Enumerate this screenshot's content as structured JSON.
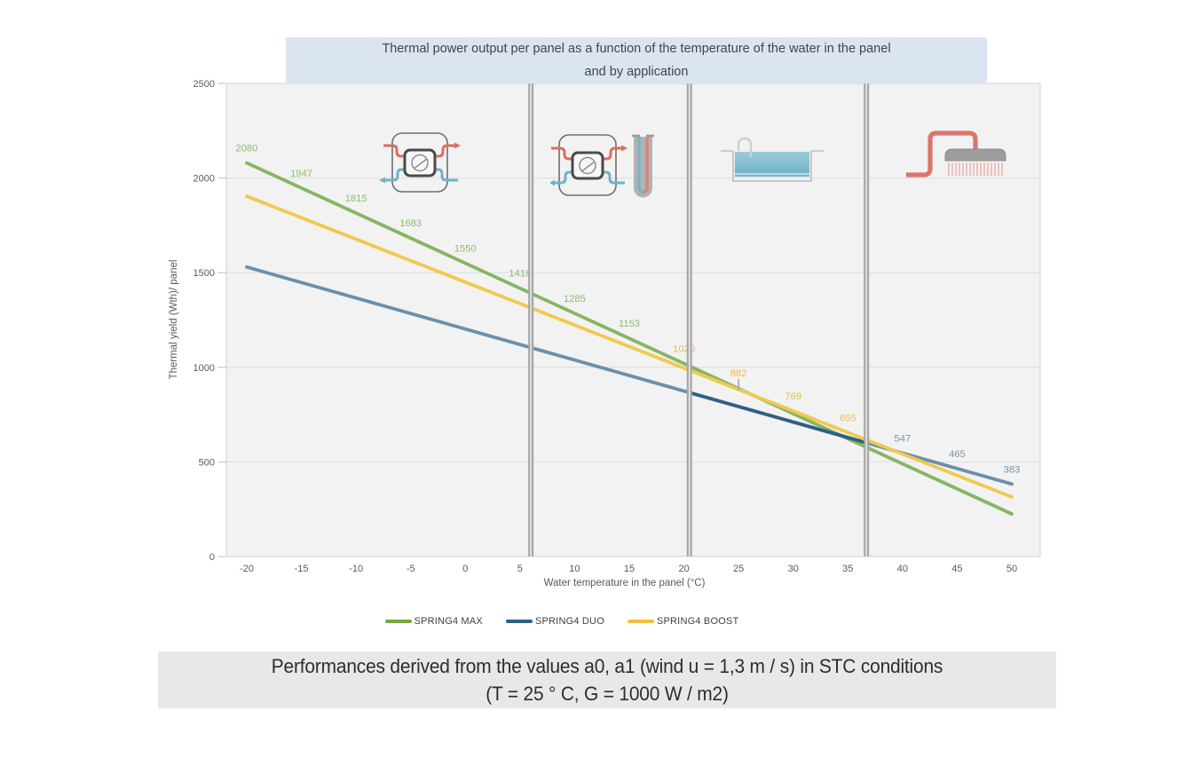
{
  "title": {
    "line1": "Thermal power output per panel as a function of the temperature of the water in the panel",
    "line2": "and by application"
  },
  "axes": {
    "x_label": "Water temperature in the panel (°C)",
    "y_label": "Thermal yield (Wth)/ panel",
    "x_ticks": [
      -20,
      -15,
      -10,
      -5,
      0,
      5,
      10,
      15,
      20,
      25,
      30,
      35,
      40,
      45,
      50
    ],
    "y_ticks": [
      0,
      500,
      1000,
      1500,
      2000,
      2500
    ]
  },
  "chart_data": {
    "type": "line",
    "title": "Thermal power output per panel as a function of the temperature of the water in the panel and by application",
    "xlabel": "Water temperature in the panel (°C)",
    "ylabel": "Thermal yield (Wth)/ panel",
    "xlim": [
      -20,
      50
    ],
    "ylim": [
      0,
      2500
    ],
    "grid": "horizontal",
    "legend_position": "bottom",
    "series": [
      {
        "name": "SPRING4 MAX",
        "color": "#86b563",
        "points": [
          [
            -20,
            2080
          ],
          [
            50,
            225
          ]
        ]
      },
      {
        "name": "SPRING4 DUO",
        "color": "#6b8fa9",
        "points": [
          [
            -20,
            1530
          ],
          [
            50,
            383
          ]
        ],
        "highlight_segment": {
          "from_x": 20.5,
          "to_x": 36.7,
          "color": "#2e6183"
        }
      },
      {
        "name": "SPRING4 BOOST",
        "color": "#f0c94f",
        "points": [
          [
            -20,
            1904
          ],
          [
            50,
            315
          ]
        ]
      }
    ],
    "point_labels": [
      {
        "x": -20,
        "value": 2080,
        "color": "#8cbb6c"
      },
      {
        "x": -15,
        "value": 1947,
        "color": "#8cbb6c"
      },
      {
        "x": -10,
        "value": 1815,
        "color": "#8cbb6c"
      },
      {
        "x": -5,
        "value": 1683,
        "color": "#8cbb6c"
      },
      {
        "x": 0,
        "value": 1550,
        "color": "#8cbb6c"
      },
      {
        "x": 5,
        "value": 1418,
        "color": "#8cbb6c"
      },
      {
        "x": 10,
        "value": 1285,
        "color": "#8cbb6c"
      },
      {
        "x": 15,
        "value": 1153,
        "color": "#8cbb6c"
      },
      {
        "x": 20,
        "value": 1020,
        "color": "#edbc43"
      },
      {
        "x": 25,
        "value": 882,
        "color": "#edbc43",
        "leader": true
      },
      {
        "x": 30,
        "value": 769,
        "color": "#edbc43"
      },
      {
        "x": 35,
        "value": 655,
        "color": "#edbc43"
      },
      {
        "x": 40,
        "value": 547,
        "color": "#7697ae"
      },
      {
        "x": 45,
        "value": 465,
        "color": "#7697ae"
      },
      {
        "x": 50,
        "value": 383,
        "color": "#7697ae"
      }
    ],
    "dividers_x": [
      6,
      20.5,
      36.7
    ],
    "regions": [
      {
        "icon": "heat-pump"
      },
      {
        "icon": "heat-pump-borehole"
      },
      {
        "icon": "swimming-pool"
      },
      {
        "icon": "shower"
      }
    ]
  },
  "legend": {
    "items": [
      {
        "label": "SPRING4 MAX",
        "color": "#74a83e"
      },
      {
        "label": "SPRING4 DUO",
        "color": "#2e6183"
      },
      {
        "label": "SPRING4 BOOST",
        "color": "#f0bf3e"
      }
    ]
  },
  "caption": {
    "line1": "Performances derived from the values a0, a1 (wind u = 1,3 m / s) in STC conditions",
    "line2": "(T = 25 ° C, G = 1000 W / m2)"
  },
  "colors": {
    "title_bg": "#dbe5f1",
    "caption_bg": "#e8e8e8",
    "plot_bg": "#f2f2f2",
    "plot_border": "#d3d3d3",
    "grid": "#dddddd",
    "divider": "#a6a6a6",
    "divider_core": "#e6e6e6",
    "tick_text": "#595959",
    "leader": "#9e9e9e"
  }
}
